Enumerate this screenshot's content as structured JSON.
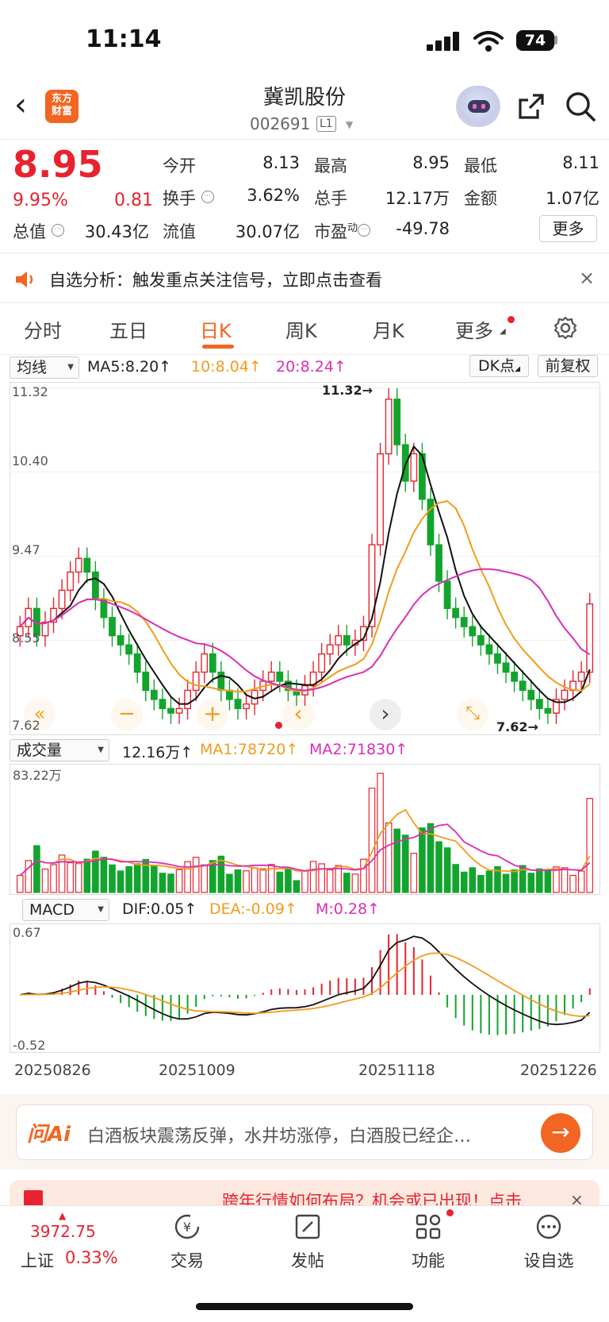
{
  "status_bar": {
    "time": "11:14",
    "battery": "74"
  },
  "header": {
    "back": "‹",
    "logo": "东方\n财富",
    "title": "冀凯股份",
    "code": "002691",
    "level": "L1"
  },
  "quote": {
    "price": "8.95",
    "pct": "9.95%",
    "change": "0.81",
    "fields": [
      {
        "label": "今开",
        "value": "8.13"
      },
      {
        "label": "最高",
        "value": "8.95"
      },
      {
        "label": "最低",
        "value": "8.11"
      },
      {
        "label": "换手",
        "value": "3.62%"
      },
      {
        "label": "总手",
        "value": "12.17万"
      },
      {
        "label": "金额",
        "value": "1.07亿"
      },
      {
        "label": "总值",
        "value": "30.43亿"
      },
      {
        "label": "流值",
        "value": "30.07亿"
      },
      {
        "label": "市盈",
        "value": "-49.78"
      }
    ],
    "pe_superscript": "动",
    "more": "更多"
  },
  "alert": {
    "text": "自选分析：触发重点关注信号，立即点击查看",
    "close": "×"
  },
  "tabs": [
    "分时",
    "五日",
    "日K",
    "周K",
    "月K",
    "更多"
  ],
  "kline_panel": {
    "selector": "均线",
    "ma5": "MA5:8.20↑",
    "ma10": "10:8.04↑",
    "ma20": "20:8.24↑",
    "dk_btn": "DK点",
    "adj_btn": "前复权",
    "y_labels": [
      "11.32",
      "10.40",
      "9.47",
      "8.55",
      "7.62"
    ],
    "high_marker": "11.32→",
    "low_marker": "7.62→",
    "controls": [
      "«",
      "−",
      "+",
      "‹",
      "›",
      "⤡"
    ]
  },
  "volume_panel": {
    "selector": "成交量",
    "value": "12.16万↑",
    "ma1": "MA1:78720↑",
    "ma2": "MA2:71830↑",
    "top_label": "83.22万"
  },
  "macd_panel": {
    "selector": "MACD",
    "dif": "DIF:0.05↑",
    "dea": "DEA:-0.09↑",
    "m": "M:0.28↑",
    "top_label": "0.67",
    "bottom_label": "-0.52"
  },
  "dates": [
    "20250826",
    "20251009",
    "20251118",
    "20251226"
  ],
  "ai_bar": {
    "logo": "问Ai",
    "text": "白酒板块震荡反弹，水井坊涨停，白酒股已经企…",
    "go": "→"
  },
  "promo": {
    "text": "跨年行情如何布局？机会或已出现！点击",
    "close": "×"
  },
  "bottom_nav": {
    "index_value": "3972.75",
    "index_name": "上证",
    "index_pct": "0.33%",
    "items": [
      "交易",
      "发帖",
      "功能",
      "设自选"
    ]
  },
  "colors": {
    "up": "#e8232f",
    "down": "#12a52d",
    "accent": "#f26522",
    "ma10": "#f39b1b",
    "ma20": "#d92fb4"
  },
  "chart_data": {
    "type": "candlestick",
    "date_range": [
      "20250826",
      "20251226"
    ],
    "price_range": [
      7.62,
      11.32
    ],
    "highest": 11.32,
    "lowest": 7.62,
    "last_close": 8.95,
    "ma": {
      "MA5": 8.2,
      "MA10": 8.04,
      "MA20": 8.24
    },
    "volume": {
      "current": "12.16万",
      "MA1": 78720,
      "MA2": 71830,
      "max": "83.22万"
    },
    "macd": {
      "DIF": 0.05,
      "DEA": -0.09,
      "M": 0.28,
      "range": [
        -0.52,
        0.67
      ]
    },
    "approx_close_series": [
      8.7,
      8.9,
      8.6,
      8.75,
      8.9,
      9.1,
      9.3,
      9.45,
      9.3,
      9.0,
      8.8,
      8.6,
      8.5,
      8.4,
      8.2,
      8.0,
      7.9,
      7.8,
      7.75,
      7.8,
      8.0,
      8.2,
      8.4,
      8.2,
      8.0,
      7.9,
      7.8,
      7.85,
      8.0,
      8.1,
      8.2,
      8.1,
      8.0,
      7.95,
      8.05,
      8.2,
      8.4,
      8.5,
      8.6,
      8.5,
      8.55,
      8.7,
      9.6,
      10.6,
      11.2,
      10.7,
      10.3,
      10.6,
      10.1,
      9.6,
      9.2,
      8.9,
      8.8,
      8.7,
      8.6,
      8.5,
      8.4,
      8.3,
      8.2,
      8.1,
      8.0,
      7.9,
      7.8,
      7.75,
      7.9,
      8.0,
      8.1,
      8.2,
      8.95
    ]
  }
}
